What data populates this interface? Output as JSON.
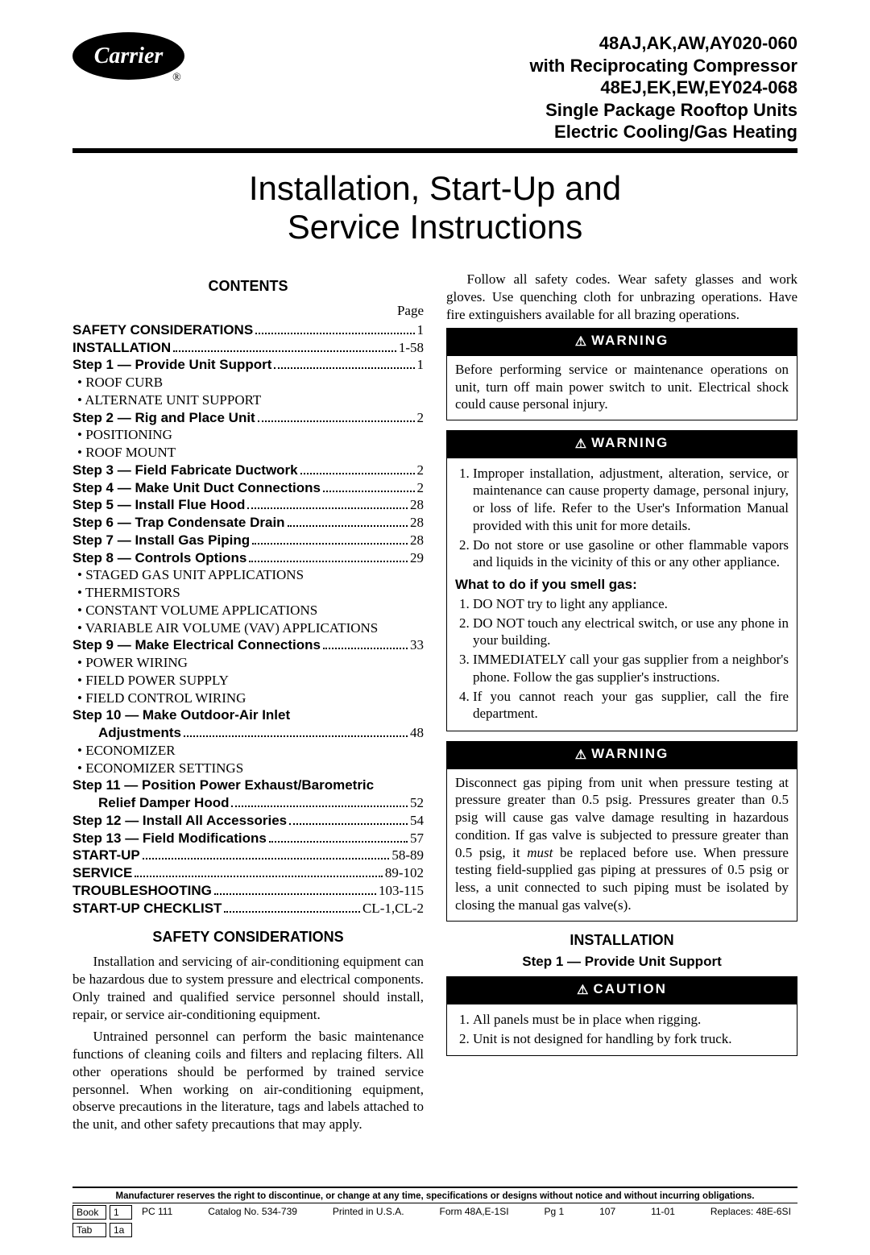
{
  "logo": {
    "name": "Carrier",
    "reg": "®"
  },
  "header": {
    "l1": "48AJ,AK,AW,AY020-060",
    "l2": "with Reciprocating Compressor",
    "l3": "48EJ,EK,EW,EY024-068",
    "l4": "Single Package Rooftop Units",
    "l5": "Electric Cooling/Gas Heating"
  },
  "title": {
    "l1": "Installation, Start-Up and",
    "l2": "Service Instructions"
  },
  "contents_head": "CONTENTS",
  "page_label": "Page",
  "toc": [
    {
      "label": "SAFETY CONSIDERATIONS",
      "page": "1",
      "bold": true
    },
    {
      "label": "INSTALLATION",
      "page": "1-58",
      "bold": true
    },
    {
      "label": "Step 1 — Provide Unit Support",
      "page": "1",
      "bold": true
    },
    {
      "label": "• ROOF CURB",
      "sub": true
    },
    {
      "label": "• ALTERNATE UNIT SUPPORT",
      "sub": true
    },
    {
      "label": "Step 2 — Rig and Place Unit",
      "page": "2",
      "bold": true
    },
    {
      "label": "• POSITIONING",
      "sub": true
    },
    {
      "label": "• ROOF MOUNT",
      "sub": true
    },
    {
      "label": "Step 3 — Field Fabricate Ductwork",
      "page": "2",
      "bold": true
    },
    {
      "label": "Step 4 — Make Unit Duct Connections",
      "page": "2",
      "bold": true
    },
    {
      "label": "Step 5 — Install Flue Hood",
      "page": "28",
      "bold": true
    },
    {
      "label": "Step 6 — Trap Condensate Drain",
      "page": "28",
      "bold": true
    },
    {
      "label": "Step 7 — Install Gas Piping",
      "page": "28",
      "bold": true
    },
    {
      "label": "Step 8 — Controls Options",
      "page": "29",
      "bold": true
    },
    {
      "label": "• STAGED GAS UNIT APPLICATIONS",
      "sub": true
    },
    {
      "label": "• THERMISTORS",
      "sub": true
    },
    {
      "label": "• CONSTANT VOLUME APPLICATIONS",
      "sub": true
    },
    {
      "label": "• VARIABLE AIR VOLUME (VAV) APPLICATIONS",
      "sub": true
    },
    {
      "label": "Step 9 — Make Electrical Connections",
      "page": "33",
      "bold": true
    },
    {
      "label": "• POWER WIRING",
      "sub": true
    },
    {
      "label": "• FIELD POWER SUPPLY",
      "sub": true
    },
    {
      "label": "• FIELD CONTROL WIRING",
      "sub": true
    },
    {
      "label": "Step 10 — Make Outdoor-Air Inlet",
      "bold": true,
      "nopagerow": true
    },
    {
      "label": "Adjustments",
      "page": "48",
      "bold": true,
      "indent": true
    },
    {
      "label": "• ECONOMIZER",
      "sub": true
    },
    {
      "label": "• ECONOMIZER SETTINGS",
      "sub": true
    },
    {
      "label": "Step 11 — Position Power Exhaust/Barometric",
      "bold": true,
      "nopagerow": true
    },
    {
      "label": "Relief Damper Hood",
      "page": "52",
      "bold": true,
      "indent": true
    },
    {
      "label": "Step 12 — Install All Accessories",
      "page": "54",
      "bold": true
    },
    {
      "label": "Step 13 — Field Modifications",
      "page": "57",
      "bold": true
    },
    {
      "label": "START-UP",
      "page": "58-89",
      "bold": true
    },
    {
      "label": "SERVICE",
      "page": "89-102",
      "bold": true
    },
    {
      "label": "TROUBLESHOOTING",
      "page": "103-115",
      "bold": true
    },
    {
      "label": "START-UP CHECKLIST",
      "page": "CL-1,CL-2",
      "bold": true
    }
  ],
  "safety_head": "SAFETY CONSIDERATIONS",
  "safety_p1": "Installation and servicing of air-conditioning equipment can be hazardous due to system pressure and electrical components. Only trained and qualified service personnel should install, repair, or service air-conditioning equipment.",
  "safety_p2": "Untrained personnel can perform the basic maintenance functions of cleaning coils and filters and replacing filters. All other operations should be performed by trained service personnel. When working on air-conditioning equipment, observe precautions in the literature, tags and labels attached to the unit, and other safety precautions that may apply.",
  "right_intro": "Follow all safety codes. Wear safety glasses and work gloves. Use quenching cloth for unbrazing operations. Have fire extinguishers available for all brazing operations.",
  "warning_label": "WARNING",
  "caution_label": "CAUTION",
  "warn1": "Before performing service or maintenance operations on unit, turn off main power switch to unit. Electrical shock could cause personal injury.",
  "warn2_items": [
    "Improper installation, adjustment, alteration, service, or maintenance can cause property damage, personal injury, or loss of life. Refer to the User's Information Manual provided with this unit for more details.",
    "Do not store or use gasoline or other flammable vapors and liquids in the vicinity of this or any other appliance."
  ],
  "gas_head": "What to do if you smell gas:",
  "gas_items": [
    "DO NOT try to light any appliance.",
    "DO NOT touch any electrical switch, or use any phone in your building.",
    "IMMEDIATELY call your gas supplier from a neighbor's phone. Follow the gas supplier's instructions.",
    "If you cannot reach your gas supplier, call the fire department."
  ],
  "warn3_pre": "Disconnect gas piping from unit when pressure testing at pressure greater than 0.5 psig. Pressures greater than 0.5 psig will cause gas valve damage resulting in hazardous condition. If gas valve is subjected to pressure greater than 0.5 psig, it ",
  "warn3_em": "must",
  "warn3_post": " be replaced before use. When pressure testing field-supplied gas piping at pressures of 0.5 psig or less, a unit connected to such piping must be isolated by closing the manual gas valve(s).",
  "install_head": "INSTALLATION",
  "step1_head": "Step 1 — Provide Unit Support",
  "caution_items": [
    "All panels must be in place when rigging.",
    "Unit is not designed for handling by fork truck."
  ],
  "footer": {
    "disclaimer": "Manufacturer reserves the right to discontinue, or change at any time, specifications or designs without notice and without incurring obligations.",
    "book_l": "Book",
    "book_v": "1",
    "tab_l": "Tab",
    "tab_v": "1a",
    "pc": "PC 111",
    "catalog": "Catalog No. 534-739",
    "printed": "Printed in U.S.A.",
    "form": "Form 48A,E-1SI",
    "pg": "Pg 1",
    "code": "107",
    "date": "11-01",
    "replaces": "Replaces: 48E-6SI"
  }
}
